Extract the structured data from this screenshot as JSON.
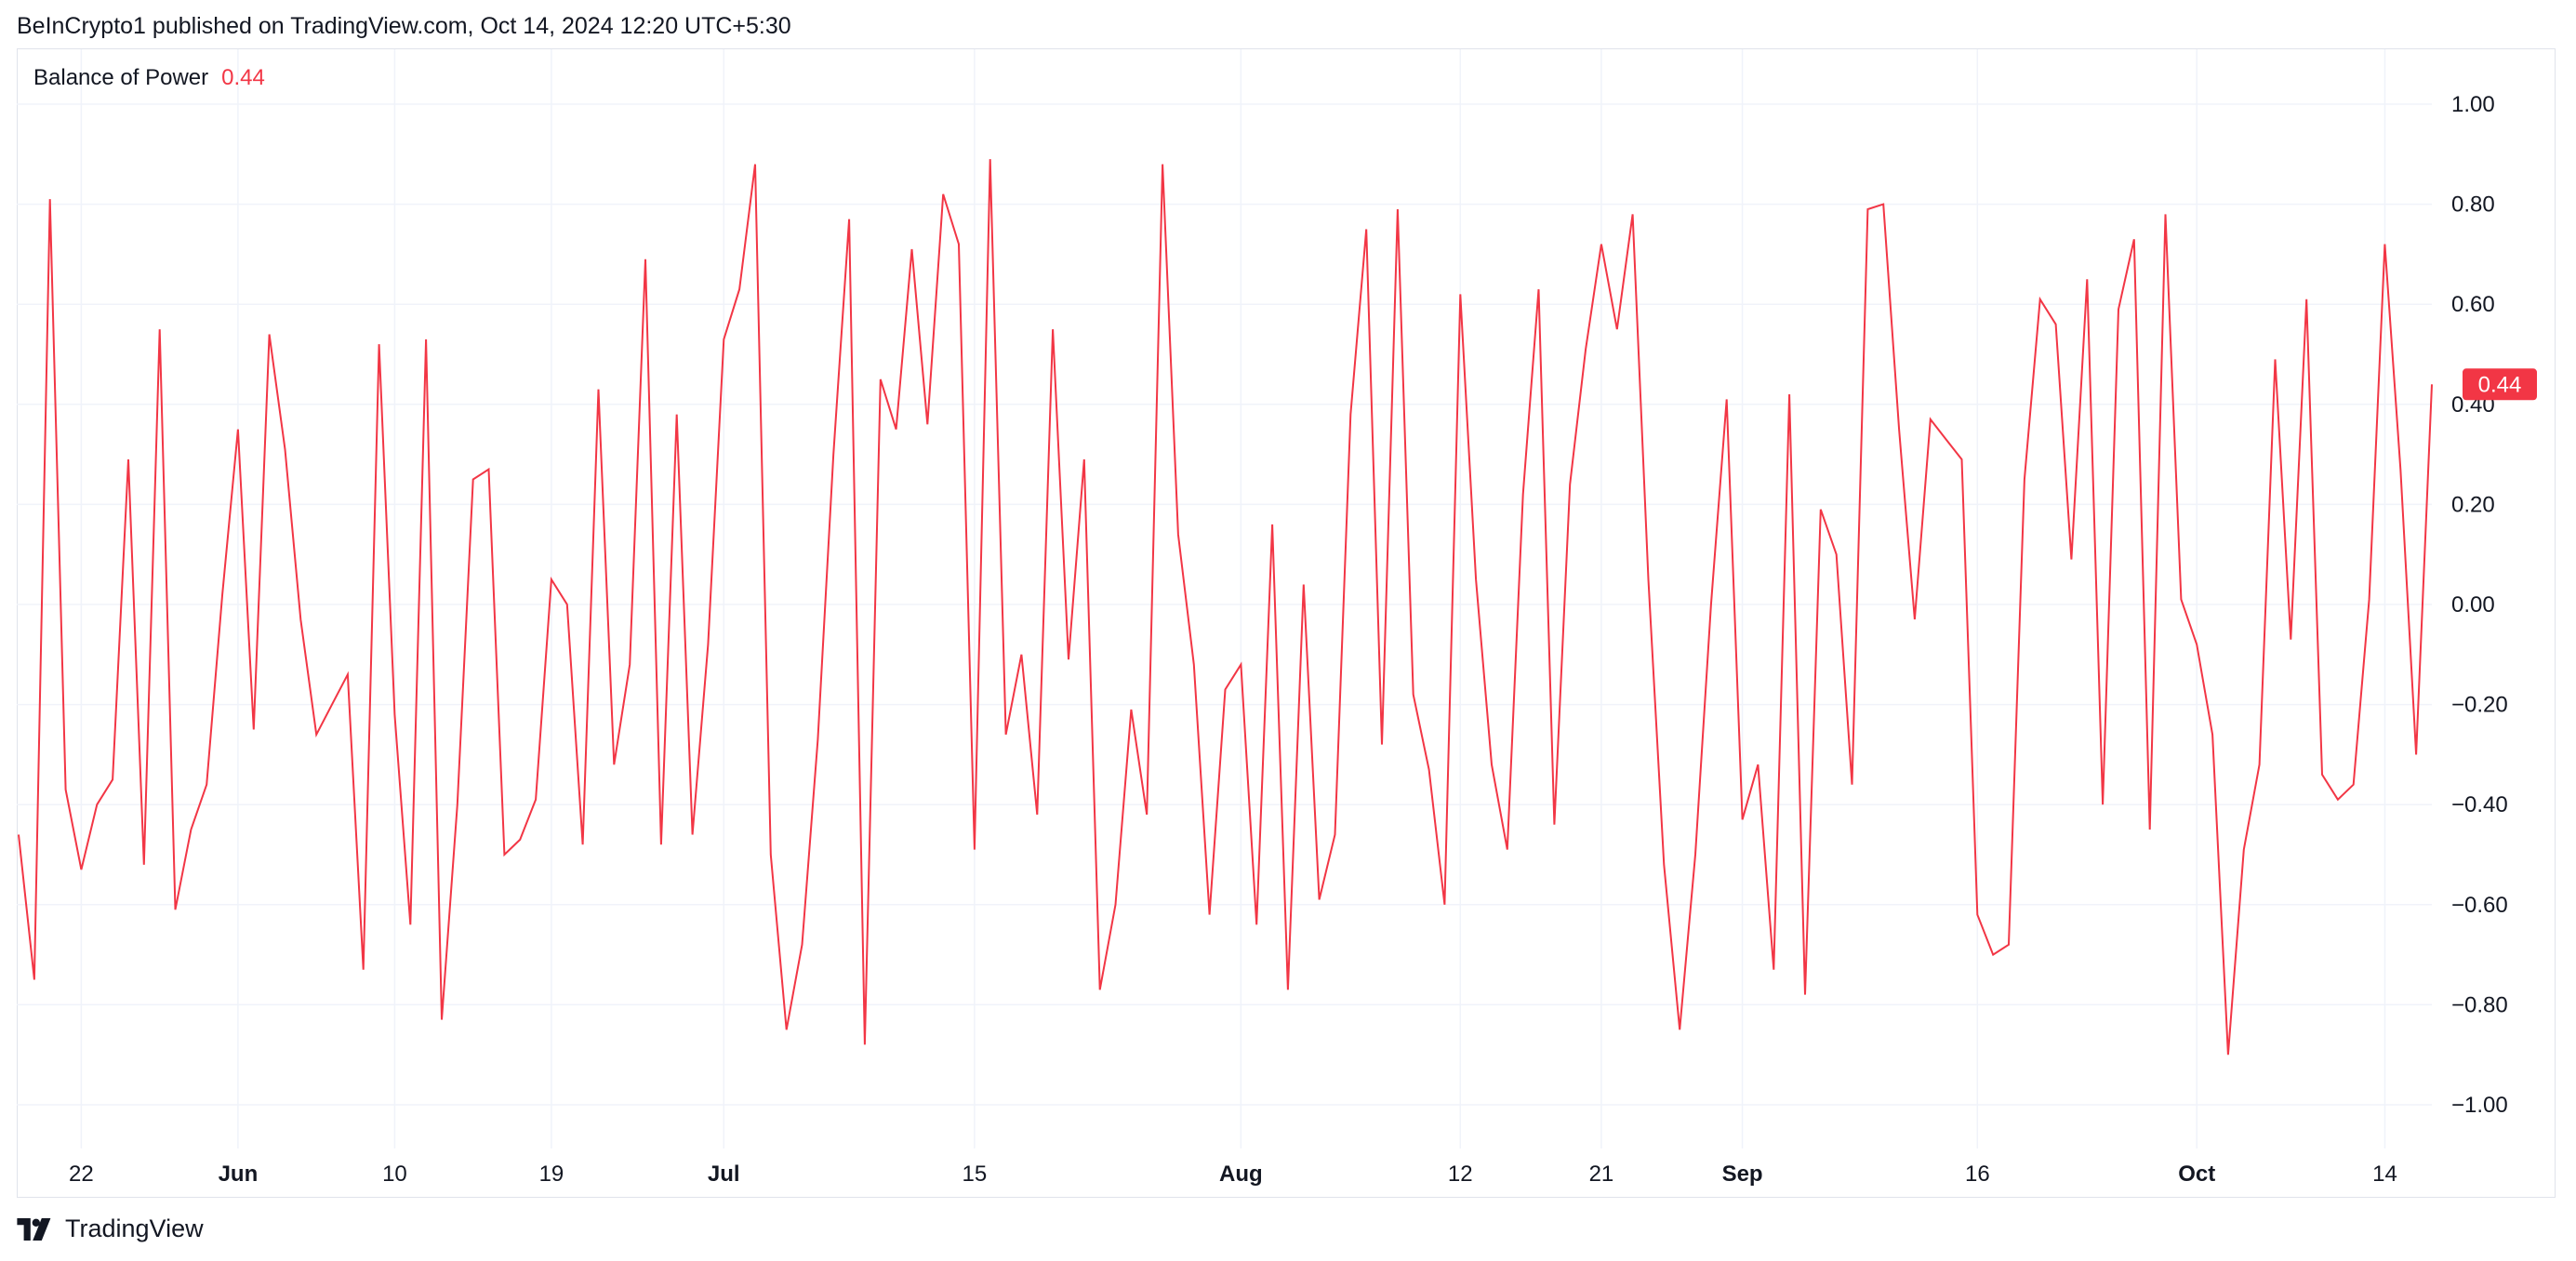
{
  "header": {
    "published": "BeInCrypto1 published on TradingView.com, Oct 14, 2024 12:20 UTC+5:30"
  },
  "indicator": {
    "name": "Balance of Power",
    "value": "0.44",
    "color": "#f23645"
  },
  "price_label": "0.44",
  "footer": {
    "brand": "TradingView"
  },
  "chart_data": {
    "type": "line",
    "title": "Balance of Power",
    "color": "#f23645",
    "ylim": [
      -1.0,
      1.0
    ],
    "y_ticks": [
      "1.00",
      "0.80",
      "0.60",
      "0.40",
      "0.20",
      "0.00",
      "−0.20",
      "−0.40",
      "−0.60",
      "−0.80",
      "−1.00"
    ],
    "x_ticks": [
      {
        "label": "22",
        "index": 4,
        "bold": false
      },
      {
        "label": "Jun",
        "index": 14,
        "bold": true
      },
      {
        "label": "10",
        "index": 24,
        "bold": false
      },
      {
        "label": "19",
        "index": 34,
        "bold": false
      },
      {
        "label": "Jul",
        "index": 45,
        "bold": true
      },
      {
        "label": "15",
        "index": 61,
        "bold": false
      },
      {
        "label": "Aug",
        "index": 78,
        "bold": true
      },
      {
        "label": "12",
        "index": 92,
        "bold": false
      },
      {
        "label": "21",
        "index": 101,
        "bold": false
      },
      {
        "label": "Sep",
        "index": 110,
        "bold": true
      },
      {
        "label": "16",
        "index": 125,
        "bold": false
      },
      {
        "label": "Oct",
        "index": 139,
        "bold": true
      },
      {
        "label": "14",
        "index": 151,
        "bold": false
      }
    ],
    "grid": true,
    "series": [
      {
        "values": [
          -0.46,
          -0.75,
          0.81,
          -0.37,
          -0.53,
          -0.4,
          -0.35,
          0.29,
          -0.52,
          0.55,
          -0.61,
          -0.45,
          -0.36,
          0.02,
          0.35,
          -0.25,
          0.54,
          0.31,
          -0.03,
          -0.26,
          -0.2,
          -0.14,
          -0.73,
          0.52,
          -0.22,
          -0.64,
          0.53,
          -0.83,
          -0.4,
          0.25,
          0.27,
          -0.5,
          -0.47,
          -0.39,
          0.05,
          0.0,
          -0.48,
          0.43,
          -0.32,
          -0.12,
          0.69,
          -0.48,
          0.38,
          -0.46,
          -0.08,
          0.53,
          0.63,
          0.88,
          -0.5,
          -0.85,
          -0.68,
          -0.27,
          0.3,
          0.77,
          -0.88,
          0.45,
          0.35,
          0.71,
          0.36,
          0.82,
          0.72,
          -0.49,
          0.89,
          -0.26,
          -0.1,
          -0.42,
          0.55,
          -0.11,
          0.29,
          -0.77,
          -0.6,
          -0.21,
          -0.42,
          0.88,
          0.14,
          -0.12,
          -0.62,
          -0.17,
          -0.12,
          -0.64,
          0.16,
          -0.77,
          0.04,
          -0.59,
          -0.46,
          0.38,
          0.75,
          -0.28,
          0.79,
          -0.18,
          -0.33,
          -0.6,
          0.62,
          0.05,
          -0.32,
          -0.49,
          0.22,
          0.63,
          -0.44,
          0.24,
          0.51,
          0.72,
          0.55,
          0.78,
          0.05,
          -0.52,
          -0.85,
          -0.5,
          0.0,
          0.41,
          -0.43,
          -0.32,
          -0.73,
          0.42,
          -0.78,
          0.19,
          0.1,
          -0.36,
          0.79,
          0.8,
          0.35,
          -0.03,
          0.37,
          0.33,
          0.29,
          -0.62,
          -0.7,
          -0.68,
          0.25,
          0.61,
          0.56,
          0.09,
          0.65,
          -0.4,
          0.59,
          0.73,
          -0.45,
          0.78,
          0.01,
          -0.08,
          -0.26,
          -0.9,
          -0.49,
          -0.32,
          0.49,
          -0.07,
          0.61,
          -0.34,
          -0.39,
          -0.36,
          0.01,
          0.72,
          0.27,
          -0.3,
          0.44
        ]
      }
    ]
  }
}
